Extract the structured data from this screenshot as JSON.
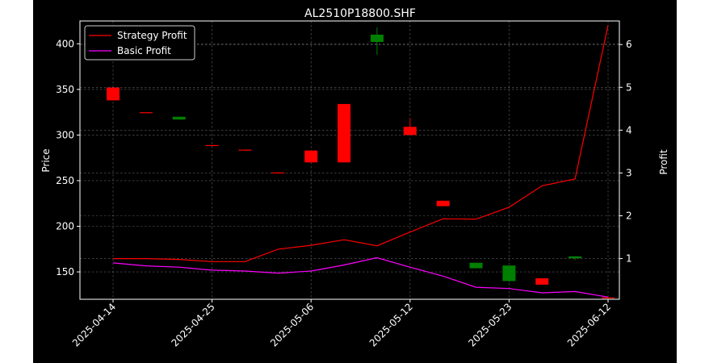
{
  "chart_data": {
    "type": "candlestick+line",
    "title": "AL2510P18800.SHF",
    "xlabel": "",
    "ylabel": "Price",
    "y2label": "Profit",
    "ylim": [
      120,
      425
    ],
    "y2lim": [
      0.05,
      6.55
    ],
    "yticks": [
      150,
      200,
      250,
      300,
      350,
      400
    ],
    "y2ticks": [
      1,
      2,
      3,
      4,
      5,
      6
    ],
    "xtick_labels": [
      "2025-04-14",
      "2025-04-25",
      "2025-05-06",
      "2025-05-12",
      "2025-05-23",
      "2025-06-12"
    ],
    "grid": true,
    "legend_position": "top-left",
    "colors": {
      "up": "#ff0000",
      "down": "#008000",
      "strategy": "#ff0000",
      "basic": "#ff00ff",
      "background": "#000000",
      "text": "#ffffff"
    },
    "candles": [
      {
        "open": 338,
        "high": 352,
        "low": 338,
        "close": 352
      },
      {
        "open": 325,
        "high": 325,
        "low": 325,
        "close": 325
      },
      {
        "open": 320,
        "high": 320,
        "low": 317,
        "close": 317
      },
      {
        "open": 289,
        "high": 289,
        "low": 289,
        "close": 289
      },
      {
        "open": 284,
        "high": 284,
        "low": 284,
        "close": 284
      },
      {
        "open": 259,
        "high": 259,
        "low": 259,
        "close": 259
      },
      {
        "open": 270,
        "high": 283,
        "low": 270,
        "close": 283
      },
      {
        "open": 270,
        "high": 334,
        "low": 270,
        "close": 334
      },
      {
        "open": 410,
        "high": 418,
        "low": 388,
        "close": 402
      },
      {
        "open": 300,
        "high": 318,
        "low": 300,
        "close": 309
      },
      {
        "open": 222,
        "high": 228,
        "low": 222,
        "close": 228
      },
      {
        "open": 160,
        "high": 160,
        "low": 154,
        "close": 154
      },
      {
        "open": 157,
        "high": 157,
        "low": 139,
        "close": 140
      },
      {
        "open": 136,
        "high": 143,
        "low": 136,
        "close": 143
      },
      {
        "open": 167,
        "high": 167,
        "low": 163,
        "close": 165
      },
      {
        "open": 121,
        "high": 122,
        "low": 121,
        "close": 122
      }
    ],
    "series": [
      {
        "name": "Strategy Profit",
        "values": [
          1.0,
          1.0,
          0.98,
          0.93,
          0.93,
          1.22,
          1.31,
          1.44,
          1.3,
          1.62,
          1.93,
          1.92,
          2.2,
          2.7,
          2.86,
          6.45
        ]
      },
      {
        "name": "Basic Profit",
        "values": [
          0.9,
          0.83,
          0.8,
          0.73,
          0.71,
          0.66,
          0.71,
          0.85,
          1.02,
          0.8,
          0.59,
          0.33,
          0.3,
          0.2,
          0.23,
          0.1
        ]
      }
    ]
  }
}
